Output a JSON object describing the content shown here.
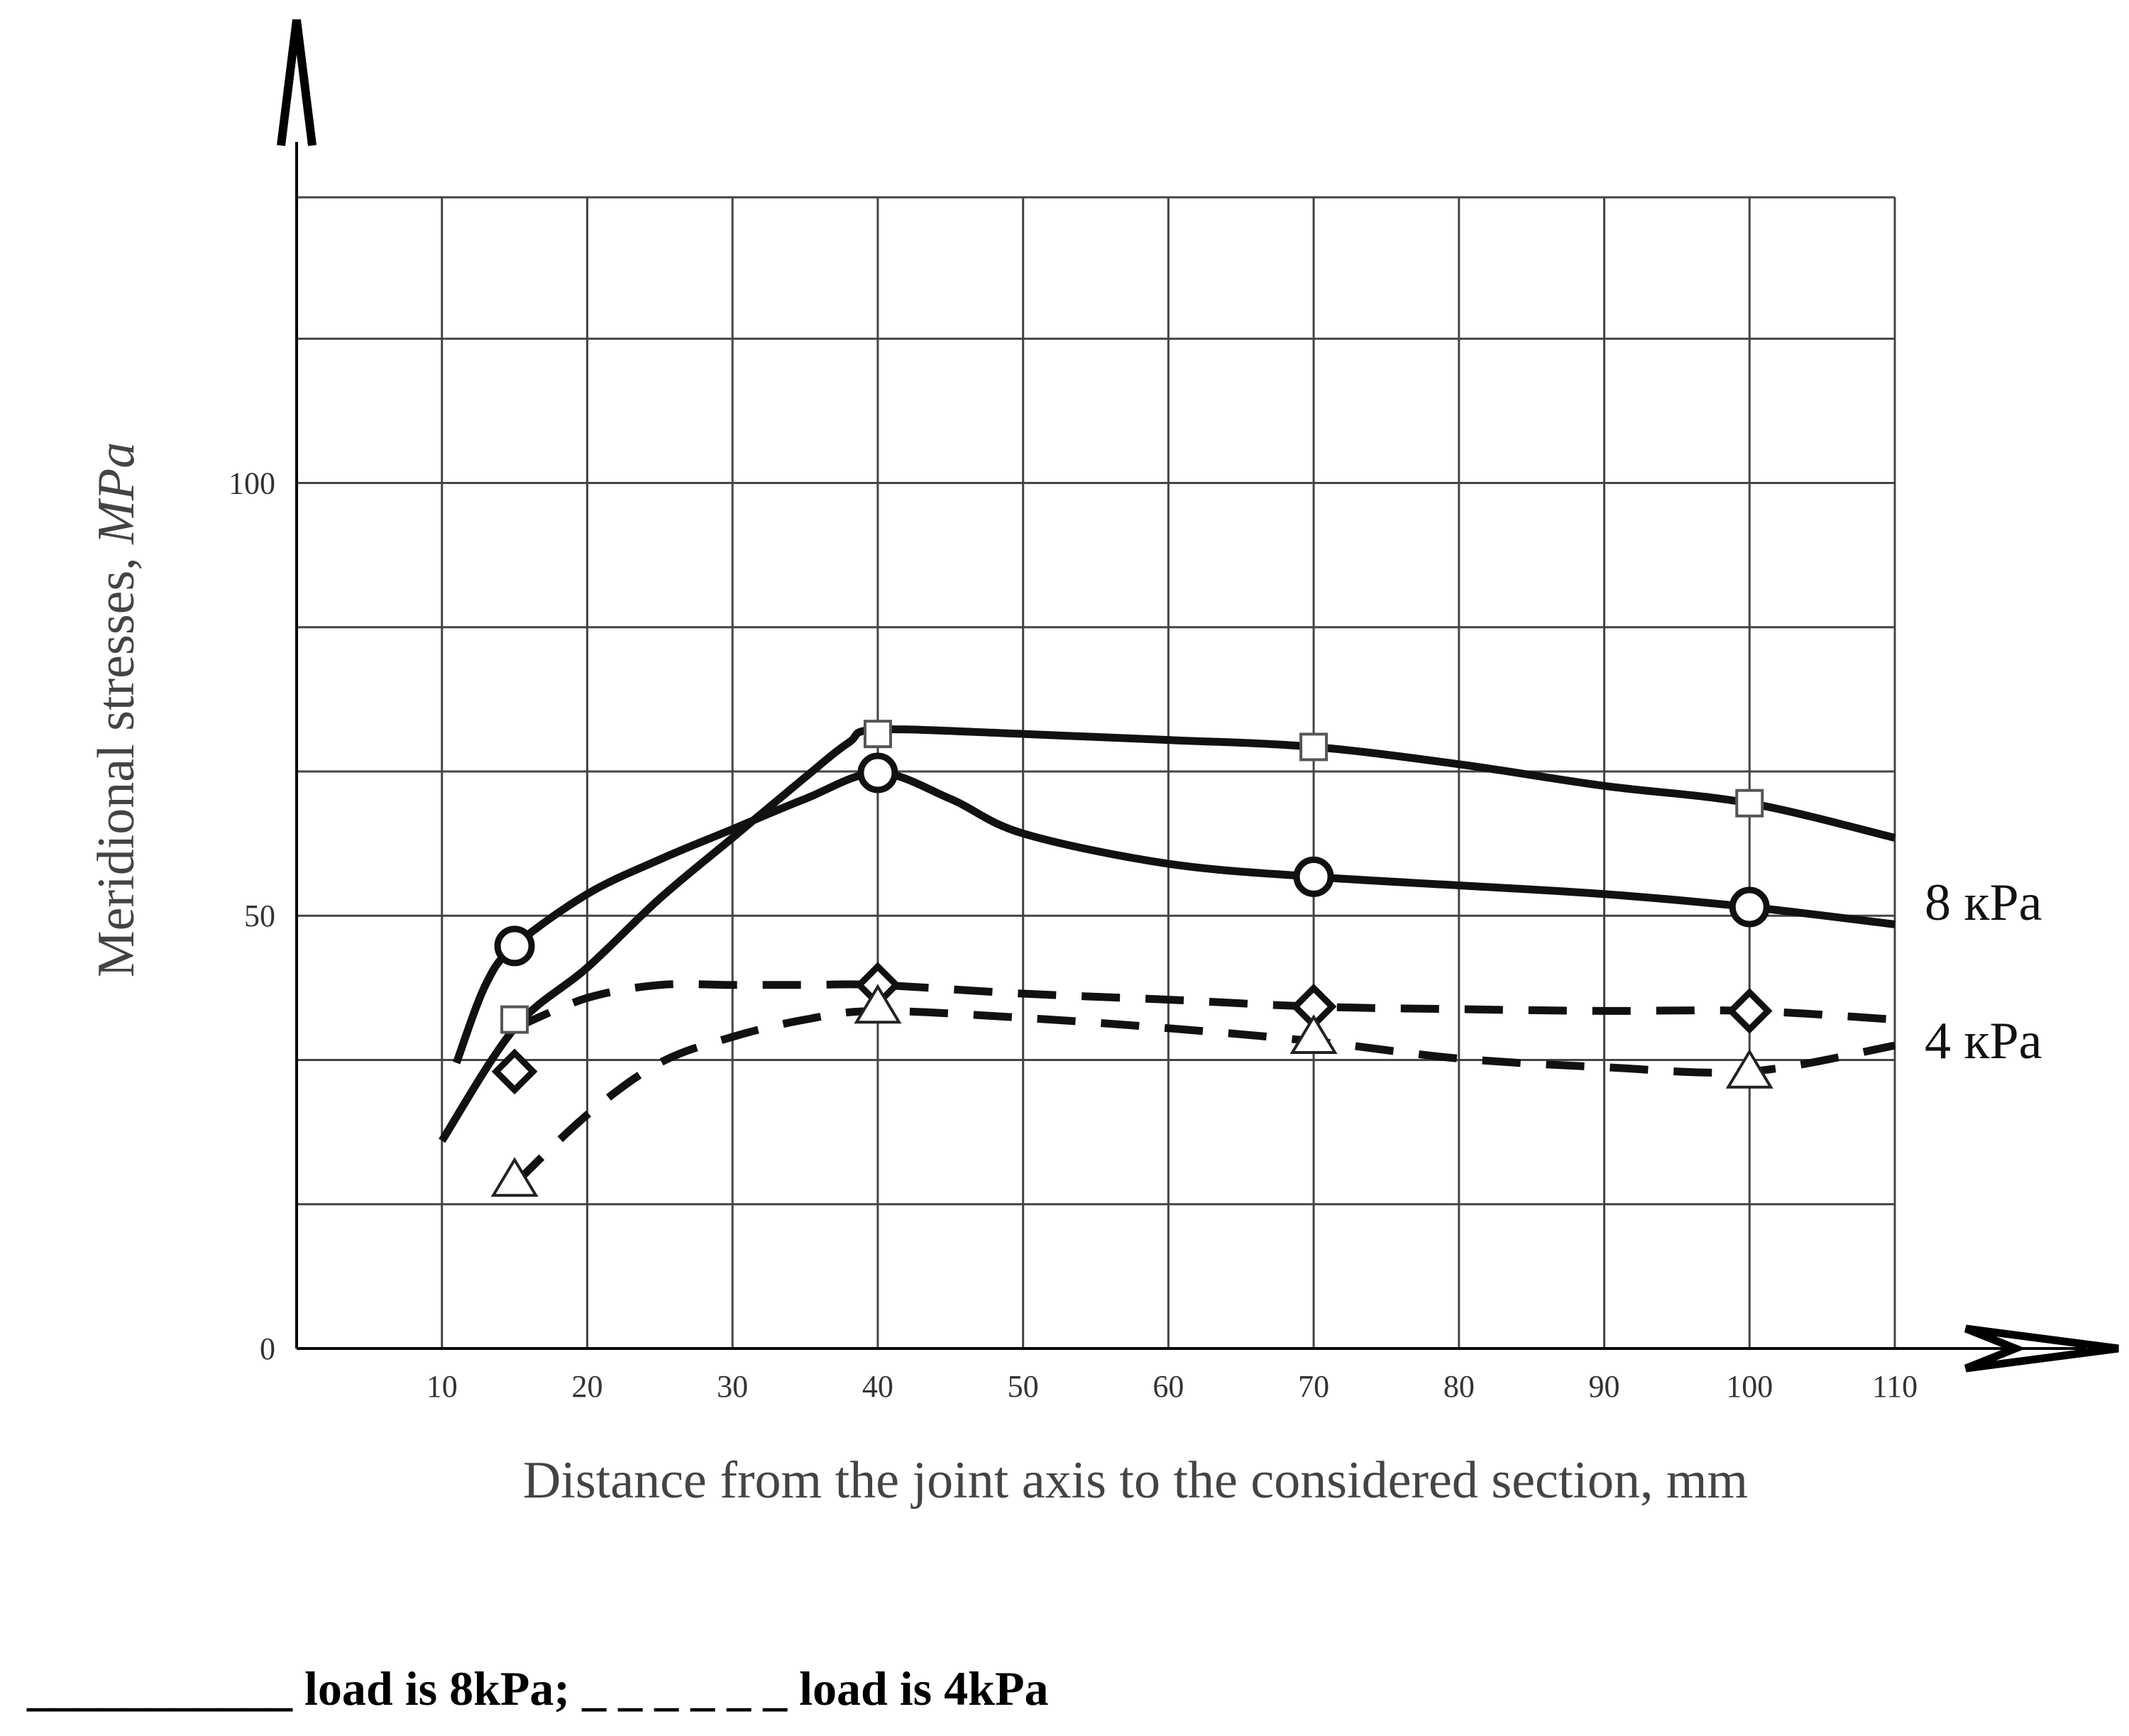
{
  "chart_data": {
    "type": "line",
    "xlabel": "Distance from the joint axis to the considered  section, mm",
    "ylabel": "Meridional stresses, MPa",
    "ylabel_prefix": "Meridional stresses, ",
    "ylabel_unit": "MPa",
    "xlim": [
      0,
      110
    ],
    "ylim": [
      0,
      133
    ],
    "x_ticks": [
      10,
      20,
      30,
      40,
      50,
      60,
      70,
      80,
      90,
      100,
      110
    ],
    "y_ticks": [
      0,
      50,
      100
    ],
    "grid": true,
    "series": [
      {
        "group": "8 кPa",
        "line": "solid",
        "marker": "square",
        "marker_x": [
          15,
          40,
          70,
          100
        ],
        "marker_y": [
          38,
          71,
          69.5,
          63
        ],
        "curve_x": [
          10,
          15,
          20,
          25,
          30,
          35,
          38,
          40,
          50,
          60,
          70,
          80,
          90,
          100,
          110
        ],
        "curve_y": [
          24,
          37,
          44,
          52,
          59,
          66,
          70,
          71.5,
          71,
          70.3,
          69.5,
          67.5,
          65,
          63,
          59
        ]
      },
      {
        "group": "8 кPa",
        "line": "solid",
        "marker": "circle",
        "marker_x": [
          15,
          40,
          70,
          100
        ],
        "marker_y": [
          46.5,
          66.5,
          54.5,
          51
        ],
        "curve_x": [
          11,
          13,
          15,
          20,
          25,
          30,
          35,
          40,
          45,
          50,
          60,
          70,
          80,
          90,
          100,
          110
        ],
        "curve_y": [
          33,
          42,
          46.5,
          52.5,
          56.5,
          60,
          63.5,
          66.5,
          63.5,
          59.5,
          56,
          54.5,
          53.5,
          52.5,
          51,
          49
        ]
      },
      {
        "group": "4 кPa",
        "line": "dashed",
        "marker": "diamond",
        "marker_x": [
          15,
          40,
          70,
          100
        ],
        "marker_y": [
          32,
          42,
          39.5,
          39
        ],
        "curve_x": [
          15,
          20,
          25,
          30,
          35,
          40,
          50,
          60,
          70,
          80,
          90,
          100,
          110
        ],
        "curve_y": [
          37,
          40.5,
          42,
          42,
          42,
          42,
          41,
          40.3,
          39.5,
          39.2,
          39,
          39,
          38
        ]
      },
      {
        "group": "4 кPa",
        "line": "dashed",
        "marker": "triangle",
        "marker_x": [
          15,
          40,
          70,
          100
        ],
        "marker_y": [
          19.5,
          39.5,
          36,
          32
        ],
        "curve_x": [
          15,
          20,
          25,
          30,
          35,
          40,
          50,
          60,
          70,
          80,
          90,
          100,
          110
        ],
        "curve_y": [
          19,
          27,
          33,
          36,
          38,
          39,
          38.2,
          37,
          35.5,
          33.5,
          32.5,
          32,
          35
        ]
      }
    ],
    "series_labels": [
      {
        "text": "8 кPa",
        "at_y": 51.5
      },
      {
        "text": "4 кPa",
        "at_y": 35.5
      }
    ],
    "caption_parts": [
      {
        "text": "___________ load is 8kPa; _ _ _ _ _ _ load is 4kPa"
      }
    ]
  },
  "colors": {
    "grid": "#444444",
    "axis": "#000000",
    "series": "#111111",
    "text": "#333333"
  }
}
